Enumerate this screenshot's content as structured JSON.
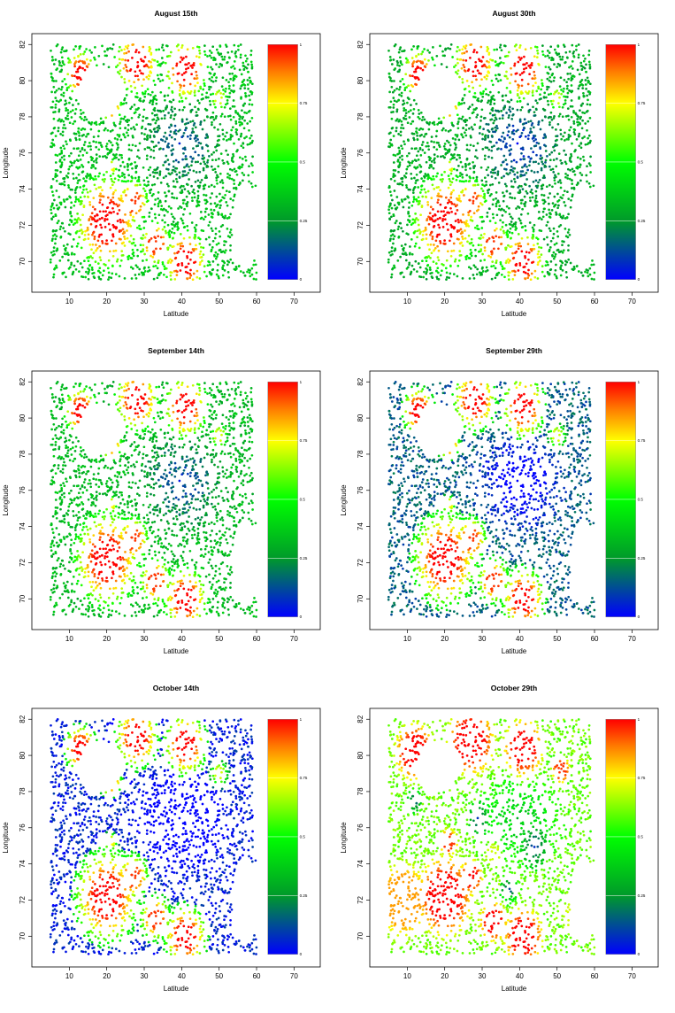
{
  "chart_data": [
    {
      "type": "scatter",
      "title": "August 15th",
      "xlabel": "Latitude",
      "ylabel": "Longitude",
      "xlim": [
        0,
        77
      ],
      "ylim": [
        68.3,
        82.6
      ],
      "xticks": [
        10,
        20,
        30,
        40,
        50,
        60,
        70
      ],
      "yticks": [
        70,
        72,
        74,
        76,
        78,
        80,
        82
      ],
      "colorbar": {
        "ticks": [
          0,
          0.25,
          0.5,
          0.75,
          1
        ],
        "tick_labels": [
          "0",
          "0.25",
          "0.5",
          "0.75",
          "1"
        ],
        "colors": [
          "#0000ff",
          "#00a000",
          "#00ff00",
          "#ffff00",
          "#ff8000",
          "#ff0000"
        ]
      },
      "hotspots": [
        {
          "x": 13,
          "y": 80.4,
          "r": 3,
          "v": 1
        },
        {
          "x": 28,
          "y": 81,
          "r": 4,
          "v": 1
        },
        {
          "x": 41,
          "y": 80.6,
          "r": 4,
          "v": 1
        },
        {
          "x": 21,
          "y": 78.6,
          "r": 2.2,
          "v": 0.95
        },
        {
          "x": 20,
          "y": 72.2,
          "r": 6,
          "v": 1
        },
        {
          "x": 27,
          "y": 73.3,
          "r": 3,
          "v": 0.95
        },
        {
          "x": 33,
          "y": 71,
          "r": 3,
          "v": 0.95
        },
        {
          "x": 41,
          "y": 70,
          "r": 4,
          "v": 1
        },
        {
          "x": 21,
          "y": 75.2,
          "r": 1.5,
          "v": 0.75
        },
        {
          "x": 50,
          "y": 79,
          "r": 2,
          "v": 0.7
        }
      ],
      "background_level": 0.35
    },
    {
      "type": "scatter",
      "title": "August 30th",
      "xlabel": "Latitude",
      "ylabel": "Longitude",
      "xlim": [
        0,
        77
      ],
      "ylim": [
        68.3,
        82.6
      ],
      "xticks": [
        10,
        20,
        30,
        40,
        50,
        60,
        70
      ],
      "yticks": [
        70,
        72,
        74,
        76,
        78,
        80,
        82
      ],
      "colorbar": {
        "ticks": [
          0,
          0.25,
          0.5,
          0.75,
          1
        ],
        "tick_labels": [
          "0",
          "0.25",
          "0.5",
          "0.75",
          "1"
        ],
        "colors": [
          "#0000ff",
          "#00a000",
          "#00ff00",
          "#ffff00",
          "#ff8000",
          "#ff0000"
        ]
      },
      "hotspots": [
        {
          "x": 13,
          "y": 80.4,
          "r": 3,
          "v": 1
        },
        {
          "x": 28,
          "y": 81,
          "r": 4,
          "v": 1
        },
        {
          "x": 41,
          "y": 80.6,
          "r": 4,
          "v": 1
        },
        {
          "x": 21,
          "y": 78.6,
          "r": 2.2,
          "v": 0.95
        },
        {
          "x": 20,
          "y": 72.2,
          "r": 6,
          "v": 1
        },
        {
          "x": 27,
          "y": 73.3,
          "r": 3,
          "v": 0.95
        },
        {
          "x": 33,
          "y": 71,
          "r": 3,
          "v": 0.95
        },
        {
          "x": 41,
          "y": 70,
          "r": 4,
          "v": 1
        },
        {
          "x": 21,
          "y": 75.2,
          "r": 1.5,
          "v": 0.75
        },
        {
          "x": 50,
          "y": 79,
          "r": 2,
          "v": 0.7
        }
      ],
      "background_level": 0.3
    },
    {
      "type": "scatter",
      "title": "September 14th",
      "xlabel": "Latitude",
      "ylabel": "Longitude",
      "xlim": [
        0,
        77
      ],
      "ylim": [
        68.3,
        82.6
      ],
      "xticks": [
        10,
        20,
        30,
        40,
        50,
        60,
        70
      ],
      "yticks": [
        70,
        72,
        74,
        76,
        78,
        80,
        82
      ],
      "colorbar": {
        "ticks": [
          0,
          0.25,
          0.5,
          0.75,
          1
        ],
        "tick_labels": [
          "0",
          "0.25",
          "0.5",
          "0.75",
          "1"
        ],
        "colors": [
          "#0000ff",
          "#00a000",
          "#00ff00",
          "#ffff00",
          "#ff8000",
          "#ff0000"
        ]
      },
      "hotspots": [
        {
          "x": 13,
          "y": 80.4,
          "r": 3,
          "v": 1
        },
        {
          "x": 28,
          "y": 81,
          "r": 4,
          "v": 1
        },
        {
          "x": 41,
          "y": 80.6,
          "r": 4,
          "v": 1
        },
        {
          "x": 21,
          "y": 78.6,
          "r": 2.2,
          "v": 0.95
        },
        {
          "x": 20,
          "y": 72.2,
          "r": 6,
          "v": 1
        },
        {
          "x": 27,
          "y": 73.3,
          "r": 3,
          "v": 0.95
        },
        {
          "x": 33,
          "y": 71,
          "r": 3,
          "v": 0.95
        },
        {
          "x": 41,
          "y": 70,
          "r": 4,
          "v": 1
        },
        {
          "x": 21,
          "y": 75.2,
          "r": 1.5,
          "v": 0.75
        },
        {
          "x": 50,
          "y": 79,
          "r": 2,
          "v": 0.7
        }
      ],
      "background_level": 0.33
    },
    {
      "type": "scatter",
      "title": "September 29th",
      "xlabel": "Latitude",
      "ylabel": "Longitude",
      "xlim": [
        0,
        77
      ],
      "ylim": [
        68.3,
        82.6
      ],
      "xticks": [
        10,
        20,
        30,
        40,
        50,
        60,
        70
      ],
      "yticks": [
        70,
        72,
        74,
        76,
        78,
        80,
        82
      ],
      "colorbar": {
        "ticks": [
          0,
          0.25,
          0.5,
          0.75,
          1
        ],
        "tick_labels": [
          "0",
          "0.25",
          "0.5",
          "0.75",
          "1"
        ],
        "colors": [
          "#0000ff",
          "#00a000",
          "#00ff00",
          "#ffff00",
          "#ff8000",
          "#ff0000"
        ]
      },
      "hotspots": [
        {
          "x": 13,
          "y": 80.4,
          "r": 3,
          "v": 1
        },
        {
          "x": 28,
          "y": 81,
          "r": 4,
          "v": 1
        },
        {
          "x": 41,
          "y": 80.6,
          "r": 4,
          "v": 1
        },
        {
          "x": 21,
          "y": 78.6,
          "r": 2.2,
          "v": 0.95
        },
        {
          "x": 20,
          "y": 72.2,
          "r": 6,
          "v": 1
        },
        {
          "x": 27,
          "y": 73.3,
          "r": 3,
          "v": 0.95
        },
        {
          "x": 33,
          "y": 71,
          "r": 3,
          "v": 0.95
        },
        {
          "x": 41,
          "y": 70,
          "r": 4,
          "v": 1
        },
        {
          "x": 21,
          "y": 75.2,
          "r": 1.5,
          "v": 0.75
        },
        {
          "x": 50,
          "y": 79,
          "r": 2,
          "v": 0.7
        }
      ],
      "background_level": 0.15
    },
    {
      "type": "scatter",
      "title": "October 14th",
      "xlabel": "Latitude",
      "ylabel": "Longitude",
      "xlim": [
        0,
        77
      ],
      "ylim": [
        68.3,
        82.6
      ],
      "xticks": [
        10,
        20,
        30,
        40,
        50,
        60,
        70
      ],
      "yticks": [
        70,
        72,
        74,
        76,
        78,
        80,
        82
      ],
      "colorbar": {
        "ticks": [
          0,
          0.25,
          0.5,
          0.75,
          1
        ],
        "tick_labels": [
          "0",
          "0.25",
          "0.5",
          "0.75",
          "1"
        ],
        "colors": [
          "#0000ff",
          "#00a000",
          "#00ff00",
          "#ffff00",
          "#ff8000",
          "#ff0000"
        ]
      },
      "hotspots": [
        {
          "x": 13,
          "y": 80.4,
          "r": 3,
          "v": 1
        },
        {
          "x": 28,
          "y": 81,
          "r": 4,
          "v": 1
        },
        {
          "x": 41,
          "y": 80.6,
          "r": 4,
          "v": 1
        },
        {
          "x": 21,
          "y": 78.6,
          "r": 2.2,
          "v": 0.95
        },
        {
          "x": 20,
          "y": 72.2,
          "r": 6,
          "v": 1
        },
        {
          "x": 27,
          "y": 73.3,
          "r": 3,
          "v": 0.95
        },
        {
          "x": 33,
          "y": 71,
          "r": 3,
          "v": 0.95
        },
        {
          "x": 41,
          "y": 70,
          "r": 4,
          "v": 1
        },
        {
          "x": 21,
          "y": 75.2,
          "r": 1.5,
          "v": 0.75
        },
        {
          "x": 50,
          "y": 79,
          "r": 2,
          "v": 0.7
        }
      ],
      "background_level": 0.05
    },
    {
      "type": "scatter",
      "title": "October 29th",
      "xlabel": "Latitude",
      "ylabel": "Longitude",
      "xlim": [
        0,
        77
      ],
      "ylim": [
        68.3,
        82.6
      ],
      "xticks": [
        10,
        20,
        30,
        40,
        50,
        60,
        70
      ],
      "yticks": [
        70,
        72,
        74,
        76,
        78,
        80,
        82
      ],
      "colorbar": {
        "ticks": [
          0,
          0.25,
          0.5,
          0.75,
          1
        ],
        "tick_labels": [
          "0",
          "0.25",
          "0.5",
          "0.75",
          "1"
        ],
        "colors": [
          "#0000ff",
          "#00a000",
          "#00ff00",
          "#ffff00",
          "#ff8000",
          "#ff0000"
        ]
      },
      "hotspots": [
        {
          "x": 12,
          "y": 80.2,
          "r": 5,
          "v": 1
        },
        {
          "x": 27,
          "y": 80.8,
          "r": 6,
          "v": 1
        },
        {
          "x": 41,
          "y": 80.4,
          "r": 5,
          "v": 1
        },
        {
          "x": 51,
          "y": 79.2,
          "r": 2.5,
          "v": 0.95
        },
        {
          "x": 20,
          "y": 72.2,
          "r": 7,
          "v": 1
        },
        {
          "x": 27,
          "y": 73.3,
          "r": 3,
          "v": 1
        },
        {
          "x": 33,
          "y": 70.8,
          "r": 3.5,
          "v": 1
        },
        {
          "x": 41,
          "y": 70,
          "r": 5,
          "v": 1
        },
        {
          "x": 21,
          "y": 75.2,
          "r": 2.5,
          "v": 0.95
        },
        {
          "x": 9,
          "y": 72,
          "r": 8,
          "v": 0.85
        },
        {
          "x": 55,
          "y": 71,
          "r": 5,
          "v": 0.7
        },
        {
          "x": 33,
          "y": 74.5,
          "r": 3,
          "v": 0.7
        }
      ],
      "cold_spots": [
        {
          "x": 29,
          "y": 76.5,
          "r": 3
        },
        {
          "x": 44,
          "y": 75,
          "r": 4
        },
        {
          "x": 37,
          "y": 72.5,
          "r": 2.5
        },
        {
          "x": 12,
          "y": 77.5,
          "r": 2
        }
      ],
      "background_level": 0.6
    }
  ]
}
